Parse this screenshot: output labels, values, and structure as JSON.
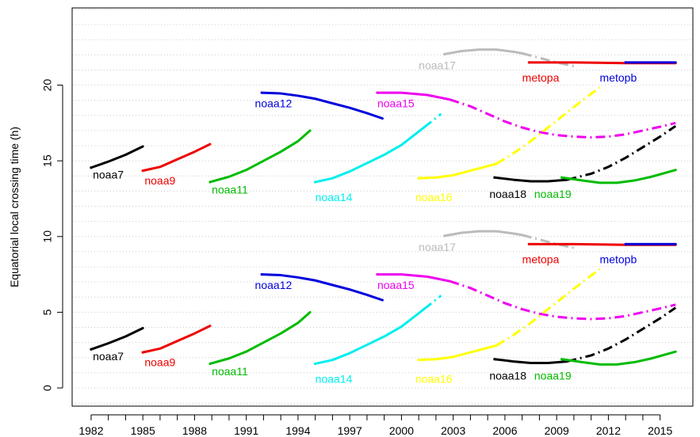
{
  "chart_data": {
    "type": "line",
    "title": "",
    "xlabel": "",
    "ylabel": "Equatorial local crossing time (h)",
    "xlim": [
      1980.9,
      2016.9
    ],
    "ylim": [
      -1.2,
      25.1
    ],
    "x_ticks": [
      1982,
      1985,
      1988,
      1991,
      1994,
      1997,
      2000,
      2003,
      2006,
      2009,
      2012,
      2015
    ],
    "x_minor_ticks": [
      1983,
      1984,
      1986,
      1987,
      1989,
      1990,
      1992,
      1993,
      1995,
      1996,
      1998,
      1999,
      2001,
      2002,
      2004,
      2005,
      2007,
      2008,
      2010,
      2011,
      2013,
      2014,
      2016
    ],
    "y_ticks": [
      0,
      5,
      10,
      15,
      20
    ],
    "grid": true,
    "grid_y_step": 1,
    "legend": "none",
    "satellites": [
      {
        "name": "noaa7",
        "color": "#000000",
        "label_pos": [
          1982.1,
          14.1
        ],
        "solid": [
          [
            1982.0,
            14.55
          ],
          [
            1983.0,
            14.95
          ],
          [
            1984.0,
            15.4
          ],
          [
            1985.0,
            15.95
          ]
        ],
        "dashed": []
      },
      {
        "name": "noaa9",
        "color": "#ee0000",
        "label_pos": [
          1985.1,
          13.7
        ],
        "solid": [
          [
            1985.0,
            14.35
          ],
          [
            1986.0,
            14.6
          ],
          [
            1987.0,
            15.1
          ],
          [
            1988.0,
            15.6
          ],
          [
            1988.9,
            16.1
          ]
        ],
        "dashed": []
      },
      {
        "name": "noaa11",
        "color": "#00bb00",
        "label_pos": [
          1989.0,
          13.1
        ],
        "solid": [
          [
            1988.9,
            13.6
          ],
          [
            1990.0,
            13.95
          ],
          [
            1991.0,
            14.4
          ],
          [
            1992.0,
            15.0
          ],
          [
            1993.0,
            15.6
          ],
          [
            1994.0,
            16.3
          ],
          [
            1994.7,
            17.0
          ]
        ],
        "dashed": []
      },
      {
        "name": "noaa12",
        "color": "#0000dd",
        "label_pos": [
          1991.5,
          18.8
        ],
        "solid": [
          [
            1991.9,
            19.5
          ],
          [
            1993.0,
            19.45
          ],
          [
            1994.0,
            19.3
          ],
          [
            1995.0,
            19.1
          ],
          [
            1996.0,
            18.8
          ],
          [
            1997.0,
            18.5
          ],
          [
            1998.0,
            18.15
          ],
          [
            1998.9,
            17.8
          ]
        ],
        "dashed": []
      },
      {
        "name": "noaa14",
        "color": "#00eeee",
        "label_pos": [
          1995.0,
          12.6
        ],
        "solid": [
          [
            1995.0,
            13.6
          ],
          [
            1996.0,
            13.85
          ],
          [
            1997.0,
            14.3
          ],
          [
            1998.0,
            14.85
          ],
          [
            1999.0,
            15.4
          ],
          [
            2000.0,
            16.05
          ],
          [
            2001.3,
            17.2
          ]
        ],
        "dashed": [
          [
            2001.3,
            17.2
          ],
          [
            2002.3,
            18.1
          ]
        ]
      },
      {
        "name": "noaa15",
        "color": "#ee00ee",
        "label_pos": [
          1998.6,
          18.8
        ],
        "solid": [
          [
            1998.6,
            19.5
          ],
          [
            2000.0,
            19.5
          ],
          [
            2001.5,
            19.35
          ],
          [
            2002.8,
            19.05
          ]
        ],
        "dashed": [
          [
            2002.8,
            19.05
          ],
          [
            2004.0,
            18.6
          ],
          [
            2005.0,
            18.1
          ],
          [
            2006.0,
            17.6
          ],
          [
            2007.0,
            17.2
          ],
          [
            2008.0,
            16.9
          ],
          [
            2009.0,
            16.7
          ],
          [
            2010.0,
            16.6
          ],
          [
            2011.0,
            16.55
          ],
          [
            2012.0,
            16.6
          ],
          [
            2013.0,
            16.75
          ],
          [
            2014.0,
            17.0
          ],
          [
            2015.0,
            17.25
          ],
          [
            2015.9,
            17.5
          ]
        ]
      },
      {
        "name": "noaa16",
        "color": "#ffff00",
        "label_pos": [
          2000.8,
          12.6
        ],
        "solid": [
          [
            2001.0,
            13.85
          ],
          [
            2002.0,
            13.9
          ],
          [
            2003.0,
            14.05
          ],
          [
            2004.0,
            14.35
          ],
          [
            2005.5,
            14.8
          ]
        ],
        "dashed": [
          [
            2005.5,
            14.8
          ],
          [
            2006.5,
            15.5
          ],
          [
            2007.5,
            16.3
          ],
          [
            2008.5,
            17.2
          ],
          [
            2009.5,
            18.1
          ],
          [
            2010.5,
            19.0
          ],
          [
            2011.5,
            19.85
          ]
        ]
      },
      {
        "name": "noaa17",
        "color": "#bbbbbb",
        "label_pos": [
          2001.0,
          21.3
        ],
        "solid": [
          [
            2002.5,
            22.05
          ],
          [
            2003.5,
            22.25
          ],
          [
            2004.5,
            22.35
          ],
          [
            2005.5,
            22.35
          ],
          [
            2006.5,
            22.2
          ],
          [
            2007.0,
            22.1
          ]
        ],
        "dashed": [
          [
            2007.0,
            22.1
          ],
          [
            2008.0,
            21.8
          ],
          [
            2009.0,
            21.5
          ],
          [
            2010.0,
            21.25
          ]
        ]
      },
      {
        "name": "noaa18",
        "color": "#000000",
        "label_pos": [
          2005.1,
          12.8
        ],
        "solid": [
          [
            2005.4,
            13.9
          ],
          [
            2006.5,
            13.75
          ],
          [
            2007.5,
            13.65
          ],
          [
            2008.5,
            13.65
          ],
          [
            2009.6,
            13.75
          ]
        ],
        "dashed": [
          [
            2009.6,
            13.75
          ],
          [
            2011.0,
            14.15
          ],
          [
            2012.0,
            14.6
          ],
          [
            2013.0,
            15.2
          ],
          [
            2014.0,
            15.9
          ],
          [
            2015.0,
            16.6
          ],
          [
            2015.9,
            17.3
          ]
        ]
      },
      {
        "name": "noaa19",
        "color": "#00bb00",
        "label_pos": [
          2007.7,
          12.8
        ],
        "solid": [
          [
            2009.3,
            13.9
          ],
          [
            2010.5,
            13.7
          ],
          [
            2011.5,
            13.55
          ],
          [
            2012.5,
            13.55
          ],
          [
            2013.5,
            13.7
          ],
          [
            2014.5,
            13.95
          ],
          [
            2015.9,
            14.4
          ]
        ],
        "dashed": []
      },
      {
        "name": "metopa",
        "color": "#ee0000",
        "label_pos": [
          2007.0,
          20.5
        ],
        "solid": [
          [
            2007.4,
            21.5
          ],
          [
            2010.0,
            21.5
          ],
          [
            2013.0,
            21.45
          ],
          [
            2015.9,
            21.45
          ]
        ],
        "dashed": []
      },
      {
        "name": "metopb",
        "color": "#0000dd",
        "label_pos": [
          2011.5,
          20.5
        ],
        "solid": [
          [
            2013.0,
            21.5
          ],
          [
            2015.9,
            21.5
          ]
        ],
        "dashed": []
      }
    ],
    "lower_copy_offset": -12
  }
}
